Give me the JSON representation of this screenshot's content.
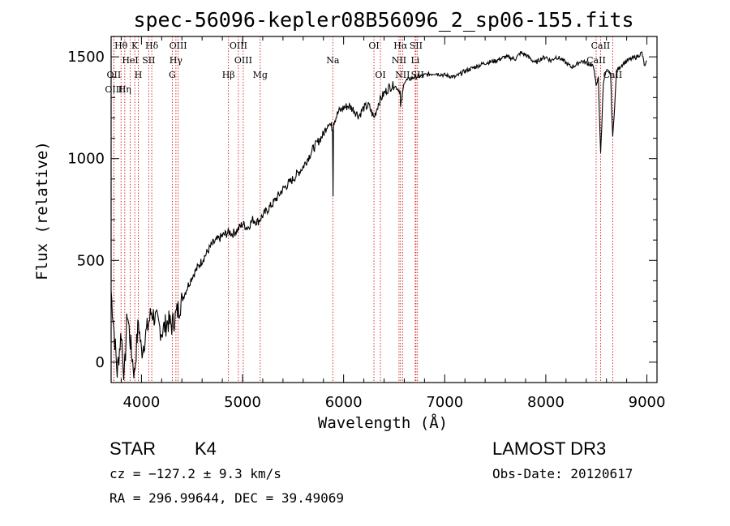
{
  "chart_data": {
    "type": "line",
    "title": "spec-56096-kepler08B56096_2_sp06-155.fits",
    "xlabel": "Wavelength (Å)",
    "ylabel": "Flux (relative)",
    "xlim": [
      3700,
      9100
    ],
    "ylim": [
      -100,
      1600
    ],
    "xticks": [
      4000,
      5000,
      6000,
      7000,
      8000,
      9000
    ],
    "yticks": [
      0,
      500,
      1000,
      1500
    ],
    "xtick_labels": [
      "4000",
      "5000",
      "6000",
      "7000",
      "8000",
      "9000"
    ],
    "ytick_labels": [
      "0",
      "500",
      "1000",
      "1500"
    ],
    "series": [
      {
        "name": "flux",
        "x": [
          3700,
          3760,
          3800,
          3830,
          3860,
          3890,
          3930,
          3970,
          4000,
          4050,
          4100,
          4150,
          4200,
          4260,
          4300,
          4340,
          4380,
          4420,
          4500,
          4600,
          4700,
          4800,
          4870,
          4900,
          4950,
          5000,
          5050,
          5100,
          5150,
          5200,
          5300,
          5400,
          5500,
          5600,
          5700,
          5800,
          5850,
          5890,
          5895,
          5900,
          5950,
          6000,
          6050,
          6100,
          6150,
          6200,
          6250,
          6300,
          6350,
          6400,
          6450,
          6500,
          6560,
          6563,
          6600,
          6700,
          6800,
          6900,
          7000,
          7100,
          7200,
          7300,
          7400,
          7500,
          7600,
          7700,
          7750,
          7800,
          7850,
          7900,
          7950,
          8000,
          8050,
          8100,
          8150,
          8200,
          8250,
          8300,
          8350,
          8400,
          8450,
          8480,
          8498,
          8520,
          8542,
          8570,
          8600,
          8640,
          8662,
          8700,
          8750,
          8800,
          8850,
          8900,
          8950,
          8980,
          9000
        ],
        "y": [
          350,
          -50,
          150,
          -80,
          250,
          100,
          -60,
          200,
          50,
          150,
          250,
          200,
          150,
          200,
          180,
          230,
          280,
          330,
          420,
          500,
          580,
          620,
          640,
          630,
          650,
          680,
          660,
          700,
          690,
          720,
          780,
          850,
          900,
          960,
          1050,
          1120,
          1180,
          1150,
          830,
          1180,
          1230,
          1250,
          1260,
          1240,
          1210,
          1250,
          1260,
          1200,
          1280,
          1320,
          1350,
          1360,
          1330,
          1250,
          1380,
          1400,
          1410,
          1420,
          1410,
          1400,
          1430,
          1450,
          1470,
          1480,
          1500,
          1490,
          1520,
          1510,
          1490,
          1470,
          1490,
          1500,
          1480,
          1500,
          1490,
          1470,
          1450,
          1460,
          1480,
          1470,
          1460,
          1440,
          1350,
          1400,
          1020,
          1380,
          1430,
          1420,
          1100,
          1430,
          1460,
          1480,
          1490,
          1500,
          1520,
          1450,
          1480
        ]
      }
    ],
    "spectral_lines": [
      {
        "label": "OII",
        "wavelength": 3727,
        "row": 2
      },
      {
        "label": "Hθ",
        "wavelength": 3798,
        "row": 0
      },
      {
        "label": "OIII",
        "wavelength": 3727,
        "row": 3
      },
      {
        "label": "Hη",
        "wavelength": 3835,
        "row": 3
      },
      {
        "label": "HeI",
        "wavelength": 3889,
        "row": 1
      },
      {
        "label": "K",
        "wavelength": 3934,
        "row": 0
      },
      {
        "label": "H",
        "wavelength": 3969,
        "row": 2
      },
      {
        "label": "SII",
        "wavelength": 4072,
        "row": 1
      },
      {
        "label": "Hδ",
        "wavelength": 4102,
        "row": 0
      },
      {
        "label": "OIII",
        "wavelength": 4363,
        "row": 0
      },
      {
        "label": "Hγ",
        "wavelength": 4341,
        "row": 1
      },
      {
        "label": "G",
        "wavelength": 4305,
        "row": 2
      },
      {
        "label": "Hβ",
        "wavelength": 4861,
        "row": 2
      },
      {
        "label": "OIII",
        "wavelength": 4959,
        "row": 0
      },
      {
        "label": "OIII",
        "wavelength": 5007,
        "row": 1
      },
      {
        "label": "Mg",
        "wavelength": 5175,
        "row": 2
      },
      {
        "label": "Na",
        "wavelength": 5893,
        "row": 1
      },
      {
        "label": "OI",
        "wavelength": 6300,
        "row": 0
      },
      {
        "label": "OI",
        "wavelength": 6364,
        "row": 2
      },
      {
        "label": "Hα",
        "wavelength": 6563,
        "row": 0
      },
      {
        "label": "NII",
        "wavelength": 6548,
        "row": 1
      },
      {
        "label": "NII",
        "wavelength": 6583,
        "row": 2
      },
      {
        "label": "SII",
        "wavelength": 6716,
        "row": 0
      },
      {
        "label": "Li",
        "wavelength": 6708,
        "row": 1
      },
      {
        "label": "SII",
        "wavelength": 6731,
        "row": 2
      },
      {
        "label": "CaII",
        "wavelength": 8542,
        "row": 0
      },
      {
        "label": "CaII",
        "wavelength": 8498,
        "row": 1
      },
      {
        "label": "CaII",
        "wavelength": 8662,
        "row": 2
      }
    ],
    "line_color": "#cc0000"
  },
  "info": {
    "object_class": "STAR",
    "subclass": "K4",
    "survey": "LAMOST DR3",
    "cz": "cz = −127.2 ± 9.3 km/s",
    "obs_date": "Obs-Date: 20120617",
    "coords": "RA = 296.99644, DEC =  39.49069"
  }
}
